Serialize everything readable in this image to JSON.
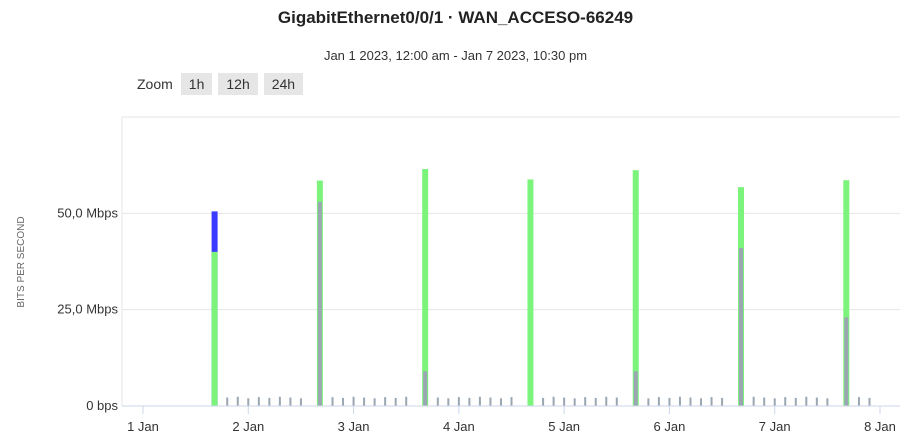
{
  "title": "GigabitEthernet0/0/1 · WAN_ACCESO-66249",
  "subtitle": "Jan 1 2023, 12:00 am - Jan 7 2023, 10:30 pm",
  "zoom": {
    "label": "Zoom",
    "buttons": [
      "1h",
      "12h",
      "24h"
    ]
  },
  "chart_data": {
    "type": "bar",
    "ylabel": "BITS PER SECOND",
    "ylim": [
      0,
      75
    ],
    "y_ticks": [
      {
        "value": 0,
        "label": "0 bps"
      },
      {
        "value": 25,
        "label": "25,0 Mbps"
      },
      {
        "value": 50,
        "label": "50,0 Mbps"
      }
    ],
    "x_ticks": [
      {
        "value": 1,
        "label": "1 Jan"
      },
      {
        "value": 2,
        "label": "2 Jan"
      },
      {
        "value": 3,
        "label": "3 Jan"
      },
      {
        "value": 4,
        "label": "4 Jan"
      },
      {
        "value": 5,
        "label": "5 Jan"
      },
      {
        "value": 6,
        "label": "6 Jan"
      },
      {
        "value": 7,
        "label": "7 Jan"
      },
      {
        "value": 8,
        "label": "8 Jan"
      }
    ],
    "xlim": [
      1,
      8
    ],
    "colors": {
      "series_a": "#3b3bff",
      "series_b": "#7cf47c",
      "series_c": "#9aa6b2",
      "grid": "#e6e6e6",
      "axis": "#ccd6eb"
    },
    "series": [
      {
        "values": [
          {
            "x": 1.68,
            "y": 50.5
          }
        ]
      },
      {
        "values": [
          {
            "x": 1.68,
            "y": 40
          },
          {
            "x": 2.68,
            "y": 58.5
          },
          {
            "x": 3.68,
            "y": 61.5
          },
          {
            "x": 4.68,
            "y": 58.8
          },
          {
            "x": 5.68,
            "y": 61.2
          },
          {
            "x": 6.68,
            "y": 56.8
          },
          {
            "x": 7.68,
            "y": 58.6
          }
        ]
      },
      {
        "values": [
          {
            "x": 2.68,
            "y": 53
          },
          {
            "x": 3.68,
            "y": 9
          },
          {
            "x": 5.68,
            "y": 9
          },
          {
            "x": 6.68,
            "y": 41
          },
          {
            "x": 7.68,
            "y": 23
          }
        ]
      },
      {
        "values": [
          {
            "x": 1.8,
            "y": 2.2
          },
          {
            "x": 1.9,
            "y": 2.4
          },
          {
            "x": 2.0,
            "y": 2.0
          },
          {
            "x": 2.1,
            "y": 2.3
          },
          {
            "x": 2.2,
            "y": 2.1
          },
          {
            "x": 2.3,
            "y": 2.4
          },
          {
            "x": 2.4,
            "y": 2.2
          },
          {
            "x": 2.5,
            "y": 2.0
          },
          {
            "x": 2.8,
            "y": 2.3
          },
          {
            "x": 2.9,
            "y": 2.1
          },
          {
            "x": 3.0,
            "y": 2.4
          },
          {
            "x": 3.1,
            "y": 2.2
          },
          {
            "x": 3.2,
            "y": 2.0
          },
          {
            "x": 3.3,
            "y": 2.3
          },
          {
            "x": 3.4,
            "y": 2.1
          },
          {
            "x": 3.5,
            "y": 2.4
          },
          {
            "x": 3.8,
            "y": 2.2
          },
          {
            "x": 3.9,
            "y": 2.0
          },
          {
            "x": 4.0,
            "y": 2.3
          },
          {
            "x": 4.1,
            "y": 2.1
          },
          {
            "x": 4.2,
            "y": 2.4
          },
          {
            "x": 4.3,
            "y": 2.2
          },
          {
            "x": 4.4,
            "y": 2.0
          },
          {
            "x": 4.5,
            "y": 2.3
          },
          {
            "x": 4.8,
            "y": 2.1
          },
          {
            "x": 4.9,
            "y": 2.4
          },
          {
            "x": 5.0,
            "y": 2.2
          },
          {
            "x": 5.1,
            "y": 2.0
          },
          {
            "x": 5.2,
            "y": 2.3
          },
          {
            "x": 5.3,
            "y": 2.1
          },
          {
            "x": 5.4,
            "y": 2.4
          },
          {
            "x": 5.5,
            "y": 2.2
          },
          {
            "x": 5.8,
            "y": 2.0
          },
          {
            "x": 5.9,
            "y": 2.3
          },
          {
            "x": 6.0,
            "y": 2.1
          },
          {
            "x": 6.1,
            "y": 2.4
          },
          {
            "x": 6.2,
            "y": 2.2
          },
          {
            "x": 6.3,
            "y": 2.0
          },
          {
            "x": 6.4,
            "y": 2.3
          },
          {
            "x": 6.5,
            "y": 2.1
          },
          {
            "x": 6.8,
            "y": 2.4
          },
          {
            "x": 6.9,
            "y": 2.2
          },
          {
            "x": 7.0,
            "y": 2.0
          },
          {
            "x": 7.1,
            "y": 2.3
          },
          {
            "x": 7.2,
            "y": 2.1
          },
          {
            "x": 7.3,
            "y": 2.4
          },
          {
            "x": 7.4,
            "y": 2.2
          },
          {
            "x": 7.5,
            "y": 2.0
          },
          {
            "x": 7.8,
            "y": 2.3
          },
          {
            "x": 7.9,
            "y": 2.1
          }
        ]
      }
    ]
  }
}
